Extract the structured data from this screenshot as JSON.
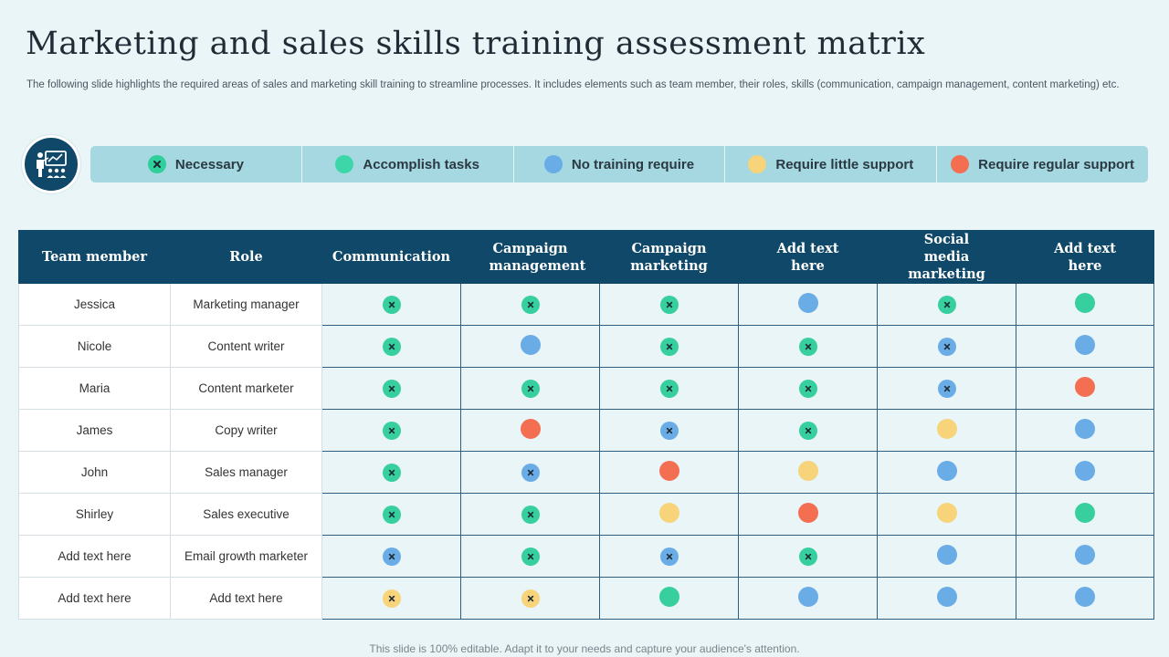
{
  "title": "Marketing and sales skills training assessment matrix",
  "subtitle": "The following slide highlights the required areas of sales and marketing skill training to streamline processes. It includes elements such as team member, their roles, skills (communication, campaign management, content marketing) etc.",
  "legend": [
    {
      "key": "necessary",
      "label": "Necessary",
      "color": "#2fcf9b",
      "mark": true
    },
    {
      "key": "accomplish",
      "label": "Accomplish  tasks",
      "color": "#3dd6a8",
      "mark": false
    },
    {
      "key": "no_training",
      "label": "No training require",
      "color": "#6aace6",
      "mark": false
    },
    {
      "key": "little_support",
      "label": "Require little support",
      "color": "#f7d37a",
      "mark": false
    },
    {
      "key": "regular_support",
      "label": "Require regular support",
      "color": "#f46f52",
      "mark": false
    }
  ],
  "colors": {
    "green": "#37cf9e",
    "blue": "#6aace6",
    "yellow": "#f7d37a",
    "red": "#f46f52",
    "mark": "#1b2a33",
    "header_bg": "#0f4868"
  },
  "table": {
    "headers": [
      "Team member",
      "Role",
      "Communication",
      "Campaign management",
      "Campaign marketing",
      "Add text here",
      "Social media marketing",
      "Add text here"
    ],
    "rows": [
      {
        "name": "Jessica",
        "role": "Marketing manager",
        "cells": [
          [
            "green",
            true
          ],
          [
            "green",
            true
          ],
          [
            "green",
            true
          ],
          [
            "blue",
            false
          ],
          [
            "green",
            true
          ],
          [
            "green",
            false
          ]
        ]
      },
      {
        "name": "Nicole",
        "role": "Content writer",
        "cells": [
          [
            "green",
            true
          ],
          [
            "blue",
            false
          ],
          [
            "green",
            true
          ],
          [
            "green",
            true
          ],
          [
            "blue",
            true
          ],
          [
            "blue",
            false
          ]
        ]
      },
      {
        "name": "Maria",
        "role": "Content marketer",
        "cells": [
          [
            "green",
            true
          ],
          [
            "green",
            true
          ],
          [
            "green",
            true
          ],
          [
            "green",
            true
          ],
          [
            "blue",
            true
          ],
          [
            "red",
            false
          ]
        ]
      },
      {
        "name": "James",
        "role": "Copy writer",
        "cells": [
          [
            "green",
            true
          ],
          [
            "red",
            false
          ],
          [
            "blue",
            true
          ],
          [
            "green",
            true
          ],
          [
            "yellow",
            false
          ],
          [
            "blue",
            false
          ]
        ]
      },
      {
        "name": "John",
        "role": "Sales manager",
        "cells": [
          [
            "green",
            true
          ],
          [
            "blue",
            true
          ],
          [
            "red",
            false
          ],
          [
            "yellow",
            false
          ],
          [
            "blue",
            false
          ],
          [
            "blue",
            false
          ]
        ]
      },
      {
        "name": "Shirley",
        "role": "Sales executive",
        "cells": [
          [
            "green",
            true
          ],
          [
            "green",
            true
          ],
          [
            "yellow",
            false
          ],
          [
            "red",
            false
          ],
          [
            "yellow",
            false
          ],
          [
            "green",
            false
          ]
        ]
      },
      {
        "name": "Add text here",
        "role": "Email growth marketer",
        "cells": [
          [
            "blue",
            true
          ],
          [
            "green",
            true
          ],
          [
            "blue",
            true
          ],
          [
            "green",
            true
          ],
          [
            "blue",
            false
          ],
          [
            "blue",
            false
          ]
        ]
      },
      {
        "name": "Add text here",
        "role": "Add text here",
        "cells": [
          [
            "yellow",
            true
          ],
          [
            "yellow",
            true
          ],
          [
            "green",
            false
          ],
          [
            "blue",
            false
          ],
          [
            "blue",
            false
          ],
          [
            "blue",
            false
          ]
        ]
      }
    ]
  },
  "footer": "This slide is 100% editable. Adapt it to your needs and capture your audience's attention."
}
